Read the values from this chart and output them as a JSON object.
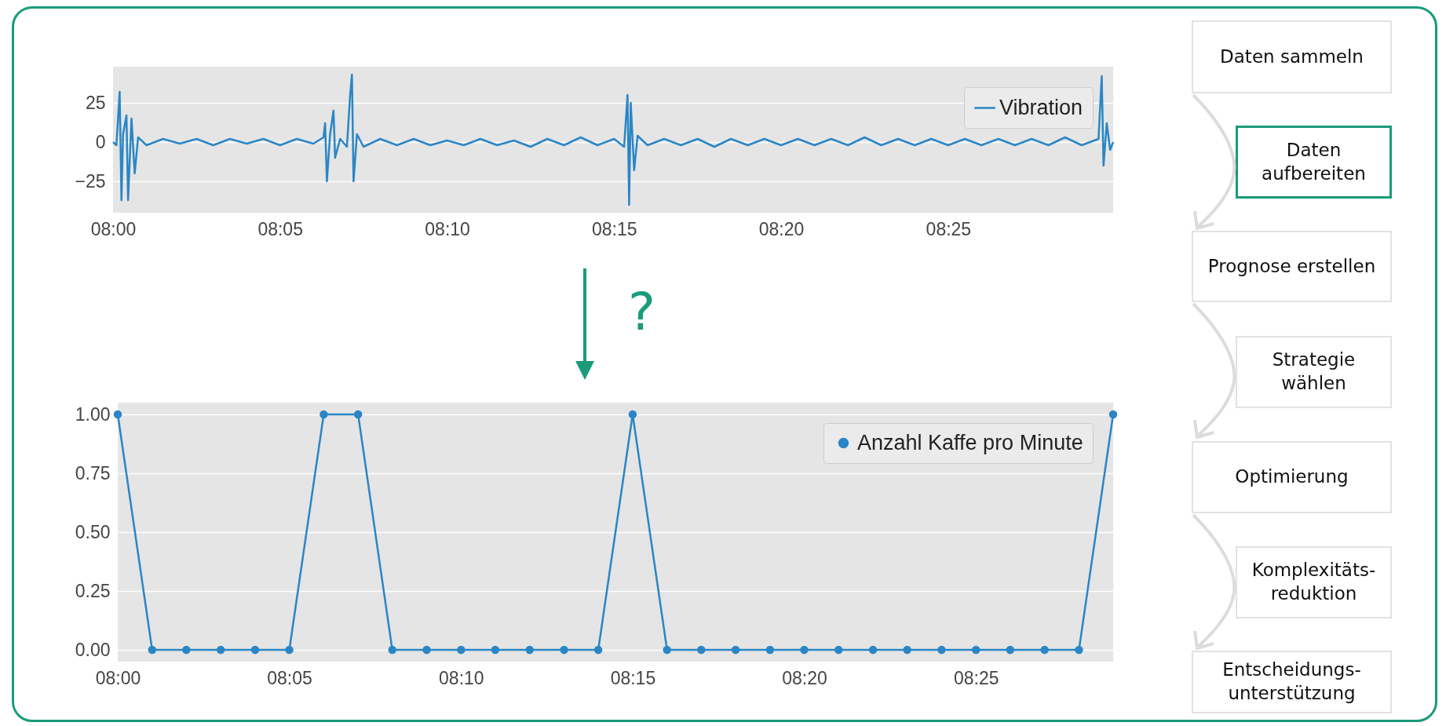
{
  "chart_data": [
    {
      "type": "line",
      "x": [
        8.0,
        8.0017,
        8.0033,
        8.0042,
        8.005,
        8.0067,
        8.0075,
        8.0092,
        8.0108,
        8.0125,
        8.0167,
        8.025,
        8.0333,
        8.0417,
        8.05,
        8.0583,
        8.0667,
        8.075,
        8.0833,
        8.0917,
        8.1,
        8.105,
        8.1058,
        8.1067,
        8.1083,
        8.11,
        8.1108,
        8.1133,
        8.1167,
        8.1183,
        8.1192,
        8.12,
        8.1217,
        8.125,
        8.1333,
        8.1417,
        8.15,
        8.1583,
        8.1667,
        8.175,
        8.1833,
        8.1917,
        8.2,
        8.2083,
        8.2167,
        8.225,
        8.2333,
        8.2417,
        8.25,
        8.255,
        8.2567,
        8.2575,
        8.2583,
        8.26,
        8.2617,
        8.2667,
        8.275,
        8.2833,
        8.2917,
        8.3,
        8.3083,
        8.3167,
        8.325,
        8.3333,
        8.3417,
        8.35,
        8.3583,
        8.3667,
        8.375,
        8.3833,
        8.3917,
        8.4,
        8.4083,
        8.4167,
        8.425,
        8.4333,
        8.4417,
        8.45,
        8.4583,
        8.4667,
        8.475,
        8.4833,
        8.4917,
        8.4933,
        8.4942,
        8.4958,
        8.4975,
        8.499
      ],
      "series": [
        {
          "name": "Vibration",
          "color": "#2a86c5",
          "values": [
            0,
            -2,
            32,
            -37,
            5,
            17,
            -37,
            15,
            -20,
            3,
            -2,
            2,
            -1,
            2,
            -2,
            2,
            -1,
            2,
            -2,
            2,
            -1,
            3,
            12,
            -25,
            5,
            20,
            -10,
            2,
            -3,
            30,
            43,
            -25,
            5,
            -3,
            2,
            -2,
            2,
            -2,
            1,
            -2,
            2,
            -2,
            1,
            -3,
            2,
            -2,
            3,
            -2,
            2,
            -3,
            30,
            -40,
            25,
            -18,
            4,
            -2,
            2,
            -2,
            2,
            -3,
            2,
            -2,
            2,
            -2,
            2,
            -2,
            2,
            -2,
            3,
            -2,
            2,
            -2,
            2,
            -2,
            2,
            -2,
            2,
            -2,
            2,
            -2,
            3,
            -2,
            2,
            42,
            -15,
            12,
            -5,
            0
          ]
        }
      ],
      "xlim": [
        8.0,
        8.499
      ],
      "xticks": [
        {
          "value": 8.0,
          "label": "08:00"
        },
        {
          "value": 8.0833,
          "label": "08:05"
        },
        {
          "value": 8.1667,
          "label": "08:10"
        },
        {
          "value": 8.25,
          "label": "08:15"
        },
        {
          "value": 8.3333,
          "label": "08:20"
        },
        {
          "value": 8.4167,
          "label": "08:25"
        }
      ],
      "ylim": [
        -45,
        48
      ],
      "yticks": [
        {
          "value": -25,
          "label": "−25"
        },
        0,
        25
      ],
      "grid": "y",
      "legend": "top right"
    },
    {
      "type": "line",
      "x": [
        8.0,
        8.0167,
        8.0333,
        8.05,
        8.0667,
        8.0833,
        8.1,
        8.1167,
        8.1333,
        8.15,
        8.1667,
        8.1833,
        8.2,
        8.2167,
        8.2333,
        8.25,
        8.2667,
        8.2833,
        8.3,
        8.3167,
        8.3333,
        8.35,
        8.3667,
        8.3833,
        8.4,
        8.4167,
        8.4333,
        8.45,
        8.4667,
        8.4833
      ],
      "series": [
        {
          "name": "Anzahl Kaffe pro Minute",
          "color": "#2a86c5",
          "values": [
            1,
            0,
            0,
            0,
            0,
            0,
            1,
            1,
            0,
            0,
            0,
            0,
            0,
            0,
            0,
            1,
            0,
            0,
            0,
            0,
            0,
            0,
            0,
            0,
            0,
            0,
            0,
            0,
            0,
            1
          ]
        }
      ],
      "xlim": [
        8.0,
        8.4833
      ],
      "xticks": [
        {
          "value": 8.0,
          "label": "08:00"
        },
        {
          "value": 8.0833,
          "label": "08:05"
        },
        {
          "value": 8.1667,
          "label": "08:10"
        },
        {
          "value": 8.25,
          "label": "08:15"
        },
        {
          "value": 8.3333,
          "label": "08:20"
        },
        {
          "value": 8.4167,
          "label": "08:25"
        }
      ],
      "ylim": [
        -0.05,
        1.05
      ],
      "yticks": [
        {
          "value": 0,
          "label": "0.00"
        },
        {
          "value": 0.25,
          "label": "0.25"
        },
        {
          "value": 0.5,
          "label": "0.50"
        },
        {
          "value": 0.75,
          "label": "0.75"
        },
        {
          "value": 1,
          "label": "1.00"
        }
      ],
      "grid": "y",
      "legend": "top right",
      "marker": "circle",
      "annotations": [
        "?"
      ]
    },
    {
      "type": "other",
      "annotations": [
        "Daten sammeln",
        "Daten aufbereiten",
        "Prognose erstellen",
        "Strategie wählen",
        "Optimierung",
        "Komplexitäts-reduktion",
        "Entscheidungs-unterstützung"
      ]
    }
  ]
}
